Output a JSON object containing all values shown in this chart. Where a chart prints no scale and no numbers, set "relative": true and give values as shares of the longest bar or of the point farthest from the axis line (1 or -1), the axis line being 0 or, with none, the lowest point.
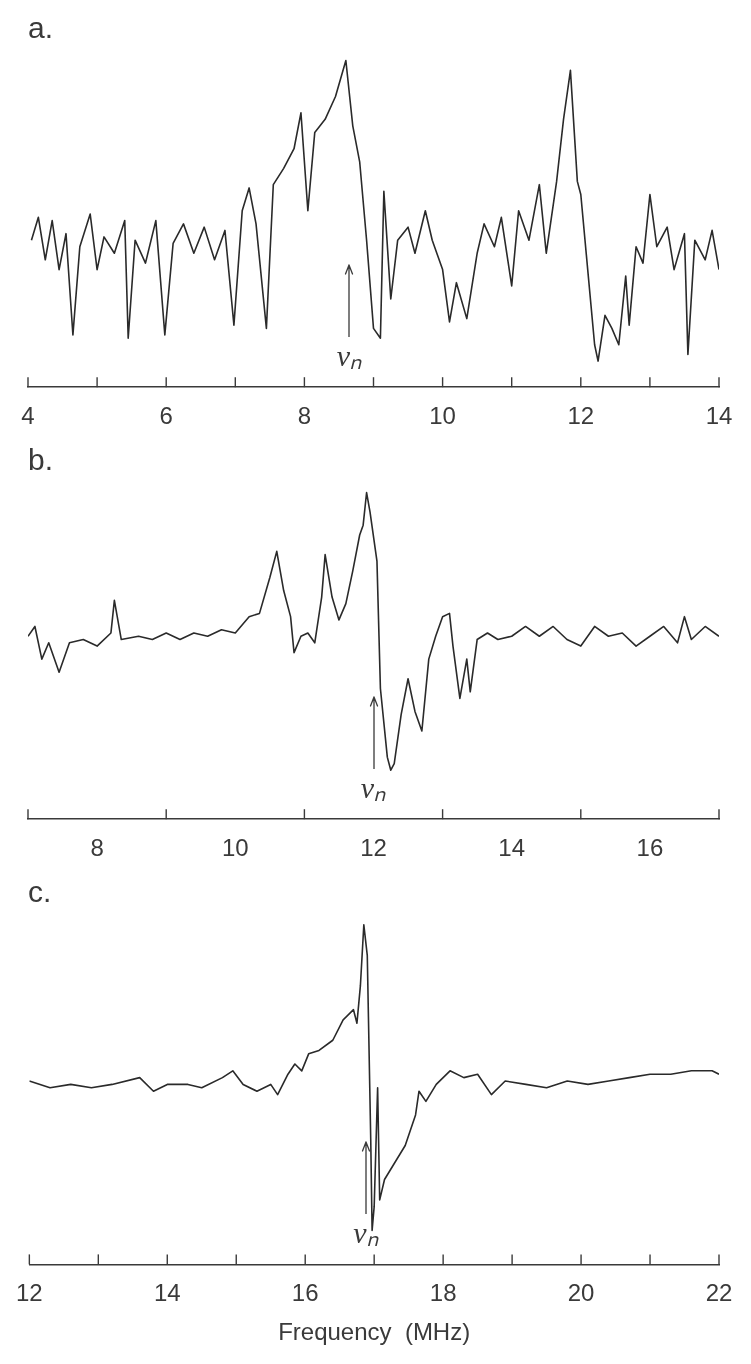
{
  "chart_data": [
    {
      "type": "line",
      "title": "a.",
      "relative": true,
      "xlim": [
        4,
        14
      ],
      "xticks": [
        4,
        {
          "value": 5,
          "label": null
        },
        6,
        {
          "value": 7,
          "label": null
        },
        8,
        {
          "value": 9,
          "label": null
        },
        10,
        {
          "value": 11,
          "label": null
        },
        12,
        {
          "value": 13,
          "label": null
        },
        14
      ],
      "ref_lines": [
        {
          "axis": "x",
          "value": 8.65,
          "label": "νₙ"
        }
      ],
      "series": [
        {
          "color": "#2a2a2a",
          "x": [
            4.05,
            4.15,
            4.25,
            4.35,
            4.45,
            4.55,
            4.65,
            4.75,
            4.9,
            5.0,
            5.1,
            5.25,
            5.4,
            5.45,
            5.55,
            5.7,
            5.85,
            5.98,
            6.1,
            6.25,
            6.4,
            6.55,
            6.7,
            6.85,
            6.98,
            7.1,
            7.2,
            7.3,
            7.45,
            7.55,
            7.7,
            7.85,
            7.95,
            8.05,
            8.15,
            8.3,
            8.45,
            8.6,
            8.7,
            8.8,
            8.9,
            9.0,
            9.1,
            9.15,
            9.25,
            9.35,
            9.5,
            9.6,
            9.75,
            9.85,
            10.0,
            10.1,
            10.2,
            10.35,
            10.5,
            10.6,
            10.75,
            10.85,
            11.0,
            11.1,
            11.25,
            11.4,
            11.5,
            11.65,
            11.75,
            11.85,
            11.95,
            12.0,
            12.1,
            12.2,
            12.25,
            12.35,
            12.45,
            12.55,
            12.65,
            12.7,
            12.8,
            12.9,
            13.0,
            13.1,
            13.25,
            13.35,
            13.5,
            13.55,
            13.65,
            13.8,
            13.9,
            14.0
          ],
          "values": [
            0.45,
            0.52,
            0.39,
            0.51,
            0.36,
            0.47,
            0.16,
            0.43,
            0.53,
            0.36,
            0.46,
            0.41,
            0.51,
            0.15,
            0.45,
            0.38,
            0.51,
            0.16,
            0.44,
            0.5,
            0.41,
            0.49,
            0.39,
            0.48,
            0.19,
            0.54,
            0.61,
            0.5,
            0.18,
            0.62,
            0.67,
            0.73,
            0.84,
            0.54,
            0.78,
            0.82,
            0.89,
            1.0,
            0.8,
            0.69,
            0.45,
            0.18,
            0.15,
            0.6,
            0.27,
            0.45,
            0.49,
            0.41,
            0.54,
            0.45,
            0.36,
            0.2,
            0.32,
            0.21,
            0.41,
            0.5,
            0.43,
            0.52,
            0.31,
            0.54,
            0.45,
            0.62,
            0.41,
            0.63,
            0.82,
            0.97,
            0.63,
            0.59,
            0.36,
            0.13,
            0.08,
            0.22,
            0.18,
            0.13,
            0.34,
            0.19,
            0.43,
            0.38,
            0.59,
            0.43,
            0.49,
            0.36,
            0.47,
            0.1,
            0.45,
            0.39,
            0.48,
            0.36
          ]
        }
      ]
    },
    {
      "type": "line",
      "title": "b.",
      "relative": true,
      "xlim": [
        7,
        17
      ],
      "xticks": [
        {
          "value": 7,
          "label": null
        },
        8,
        {
          "value": 9,
          "label": null
        },
        10,
        {
          "value": 11,
          "label": null
        },
        12,
        {
          "value": 13,
          "label": null
        },
        14,
        {
          "value": 15,
          "label": null
        },
        16,
        {
          "value": 17,
          "label": null
        }
      ],
      "ref_lines": [
        {
          "axis": "x",
          "value": 12.0,
          "label": "νₙ"
        }
      ],
      "series": [
        {
          "color": "#2a2a2a",
          "x": [
            7.0,
            7.1,
            7.2,
            7.3,
            7.45,
            7.6,
            7.8,
            8.0,
            8.2,
            8.25,
            8.35,
            8.6,
            8.8,
            9.0,
            9.2,
            9.4,
            9.6,
            9.8,
            10.0,
            10.2,
            10.35,
            10.5,
            10.6,
            10.7,
            10.8,
            10.85,
            10.95,
            11.05,
            11.15,
            11.25,
            11.3,
            11.4,
            11.5,
            11.6,
            11.7,
            11.8,
            11.85,
            11.9,
            11.95,
            12.05,
            12.1,
            12.2,
            12.25,
            12.3,
            12.4,
            12.5,
            12.6,
            12.7,
            12.8,
            12.9,
            13.0,
            13.1,
            13.15,
            13.25,
            13.35,
            13.4,
            13.5,
            13.65,
            13.8,
            14.0,
            14.2,
            14.4,
            14.6,
            14.8,
            15.0,
            15.2,
            15.4,
            15.6,
            15.8,
            16.0,
            16.2,
            16.4,
            16.5,
            16.6,
            16.8,
            17.0
          ],
          "values": [
            0.56,
            0.59,
            0.49,
            0.54,
            0.45,
            0.54,
            0.55,
            0.53,
            0.57,
            0.67,
            0.55,
            0.56,
            0.55,
            0.57,
            0.55,
            0.57,
            0.56,
            0.58,
            0.57,
            0.62,
            0.63,
            0.74,
            0.82,
            0.7,
            0.62,
            0.51,
            0.56,
            0.57,
            0.54,
            0.68,
            0.81,
            0.68,
            0.61,
            0.66,
            0.76,
            0.87,
            0.9,
            1.0,
            0.94,
            0.79,
            0.4,
            0.19,
            0.15,
            0.17,
            0.32,
            0.43,
            0.33,
            0.27,
            0.49,
            0.56,
            0.62,
            0.63,
            0.53,
            0.37,
            0.49,
            0.39,
            0.55,
            0.57,
            0.55,
            0.56,
            0.59,
            0.56,
            0.59,
            0.55,
            0.53,
            0.59,
            0.56,
            0.57,
            0.53,
            0.56,
            0.59,
            0.54,
            0.62,
            0.55,
            0.59,
            0.56
          ]
        }
      ]
    },
    {
      "type": "line",
      "title": "c.",
      "xlabel": "Frequency  (MHz)",
      "relative": true,
      "xlim": [
        12,
        22
      ],
      "xticks": [
        12,
        {
          "value": 13,
          "label": null
        },
        14,
        {
          "value": 15,
          "label": null
        },
        16,
        {
          "value": 17,
          "label": null
        },
        18,
        {
          "value": 19,
          "label": null
        },
        20,
        {
          "value": 21,
          "label": null
        },
        22
      ],
      "ref_lines": [
        {
          "axis": "x",
          "value": 16.88,
          "label": "νₙ"
        }
      ],
      "series": [
        {
          "color": "#2a2a2a",
          "x": [
            12.0,
            12.3,
            12.6,
            12.9,
            13.2,
            13.6,
            13.8,
            14.0,
            14.3,
            14.5,
            14.8,
            14.95,
            15.1,
            15.3,
            15.5,
            15.6,
            15.75,
            15.85,
            15.95,
            16.05,
            16.2,
            16.4,
            16.55,
            16.7,
            16.75,
            16.8,
            16.85,
            16.9,
            16.95,
            16.97,
            17.0,
            17.05,
            17.08,
            17.15,
            17.3,
            17.45,
            17.6,
            17.65,
            17.75,
            17.9,
            18.1,
            18.3,
            18.5,
            18.7,
            18.9,
            19.2,
            19.5,
            19.8,
            20.1,
            20.4,
            20.7,
            21.0,
            21.3,
            21.6,
            21.9,
            22.0
          ],
          "values": [
            0.54,
            0.52,
            0.53,
            0.52,
            0.53,
            0.55,
            0.51,
            0.53,
            0.53,
            0.52,
            0.55,
            0.57,
            0.53,
            0.51,
            0.53,
            0.5,
            0.56,
            0.59,
            0.57,
            0.62,
            0.63,
            0.66,
            0.72,
            0.75,
            0.71,
            0.82,
            1.0,
            0.91,
            0.37,
            0.1,
            0.17,
            0.52,
            0.19,
            0.25,
            0.3,
            0.35,
            0.44,
            0.51,
            0.48,
            0.53,
            0.57,
            0.55,
            0.56,
            0.5,
            0.54,
            0.53,
            0.52,
            0.54,
            0.53,
            0.54,
            0.55,
            0.56,
            0.56,
            0.57,
            0.57,
            0.56
          ]
        }
      ]
    }
  ]
}
